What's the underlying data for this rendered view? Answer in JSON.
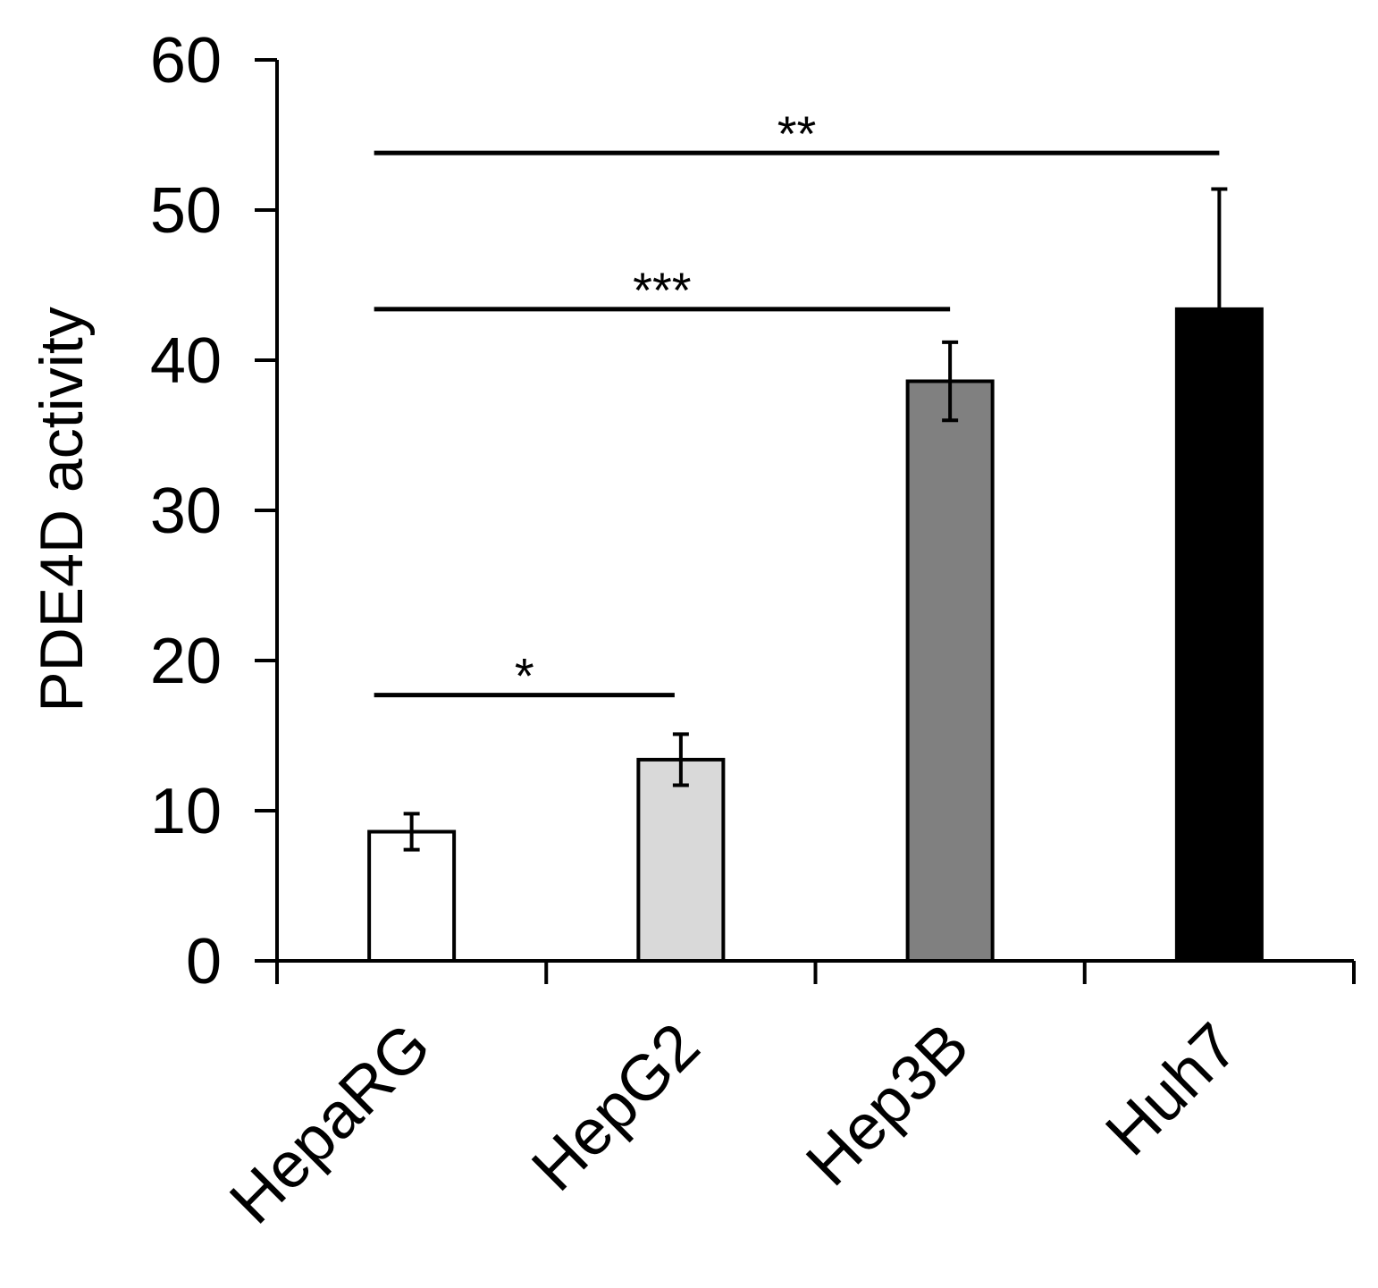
{
  "chart_data": {
    "type": "bar",
    "y_label": "PDE4D activity",
    "categories": [
      "HepaRG",
      "HepG2",
      "Hep3B",
      "Huh7"
    ],
    "values": [
      8.6,
      13.4,
      38.6,
      43.4
    ],
    "errors": [
      1.2,
      1.7,
      2.6,
      8.0
    ],
    "colors": [
      "#ffffff",
      "#d9d9d9",
      "#808080",
      "#000000"
    ],
    "ylim": [
      0,
      60
    ],
    "yticks": [
      0,
      10,
      20,
      30,
      40,
      50,
      60
    ],
    "annotations": [
      {
        "text": "*",
        "y": 17.7
      },
      {
        "text": "***",
        "y": 43.4
      },
      {
        "text": "**",
        "y": 53.8
      }
    ]
  }
}
